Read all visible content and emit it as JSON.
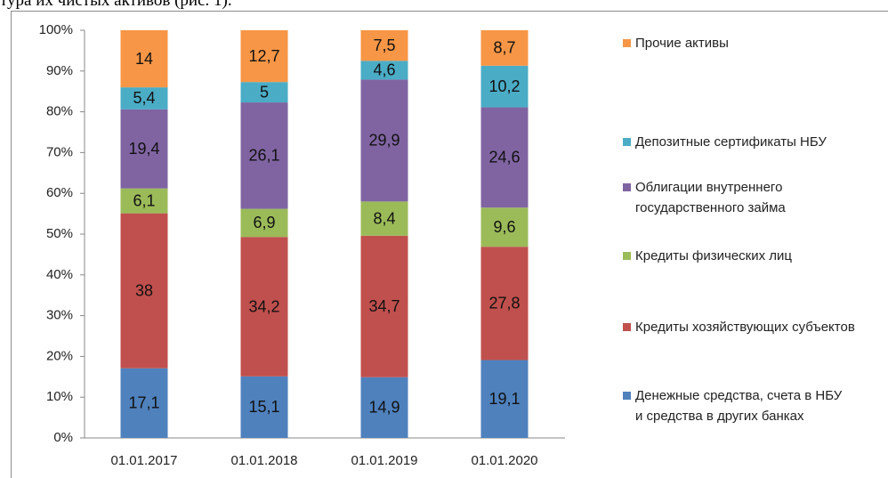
{
  "chart_data": {
    "type": "stacked_bar",
    "annotation": "тура их чистых активов (рис. 1).",
    "categories": [
      "01.01.2017",
      "01.01.2018",
      "01.01.2019",
      "01.01.2020"
    ],
    "ylim": [
      0,
      100
    ],
    "yticks": [
      {
        "value": 0,
        "label": "0%"
      },
      {
        "value": 10,
        "label": "10%"
      },
      {
        "value": 20,
        "label": "20%"
      },
      {
        "value": 30,
        "label": "30%"
      },
      {
        "value": 40,
        "label": "40%"
      },
      {
        "value": 50,
        "label": "50%"
      },
      {
        "value": 60,
        "label": "60%"
      },
      {
        "value": 70,
        "label": "70%"
      },
      {
        "value": 80,
        "label": "80%"
      },
      {
        "value": 90,
        "label": "90%"
      },
      {
        "value": 100,
        "label": "100%"
      }
    ],
    "grid": false,
    "legend": "right",
    "series": [
      {
        "name": "Денежные средства, счета в НБУ и средства в других банках",
        "color": "#4f81bd",
        "values": [
          17.1,
          15.1,
          14.9,
          19.1
        ],
        "value_labels": [
          "17,1",
          "15,1",
          "14,9",
          "19,1"
        ]
      },
      {
        "name": "Кредиты хозяйствующих субъектов",
        "color": "#c0504d",
        "values": [
          38,
          34.2,
          34.7,
          27.8
        ],
        "value_labels": [
          "38",
          "34,2",
          "34,7",
          "27,8"
        ]
      },
      {
        "name": "Кредиты физических лиц",
        "color": "#9bbb59",
        "values": [
          6.1,
          6.9,
          8.4,
          9.6
        ],
        "value_labels": [
          "6,1",
          "6,9",
          "8,4",
          "9,6"
        ]
      },
      {
        "name": "Облигации внутреннего государственного займа",
        "color": "#8064a2",
        "values": [
          19.4,
          26.1,
          29.9,
          24.6
        ],
        "value_labels": [
          "19,4",
          "26,1",
          "29,9",
          "24,6"
        ]
      },
      {
        "name": "Депозитные сертификаты НБУ",
        "color": "#4bacc6",
        "values": [
          5.4,
          5,
          4.6,
          10.2
        ],
        "value_labels": [
          "5,4",
          "5",
          "4,6",
          "10,2"
        ]
      },
      {
        "name": "Прочие активы",
        "color": "#f79646",
        "values": [
          14,
          12.7,
          7.5,
          8.7
        ],
        "value_labels": [
          "14",
          "12,7",
          "7,5",
          "8,7"
        ]
      }
    ]
  }
}
